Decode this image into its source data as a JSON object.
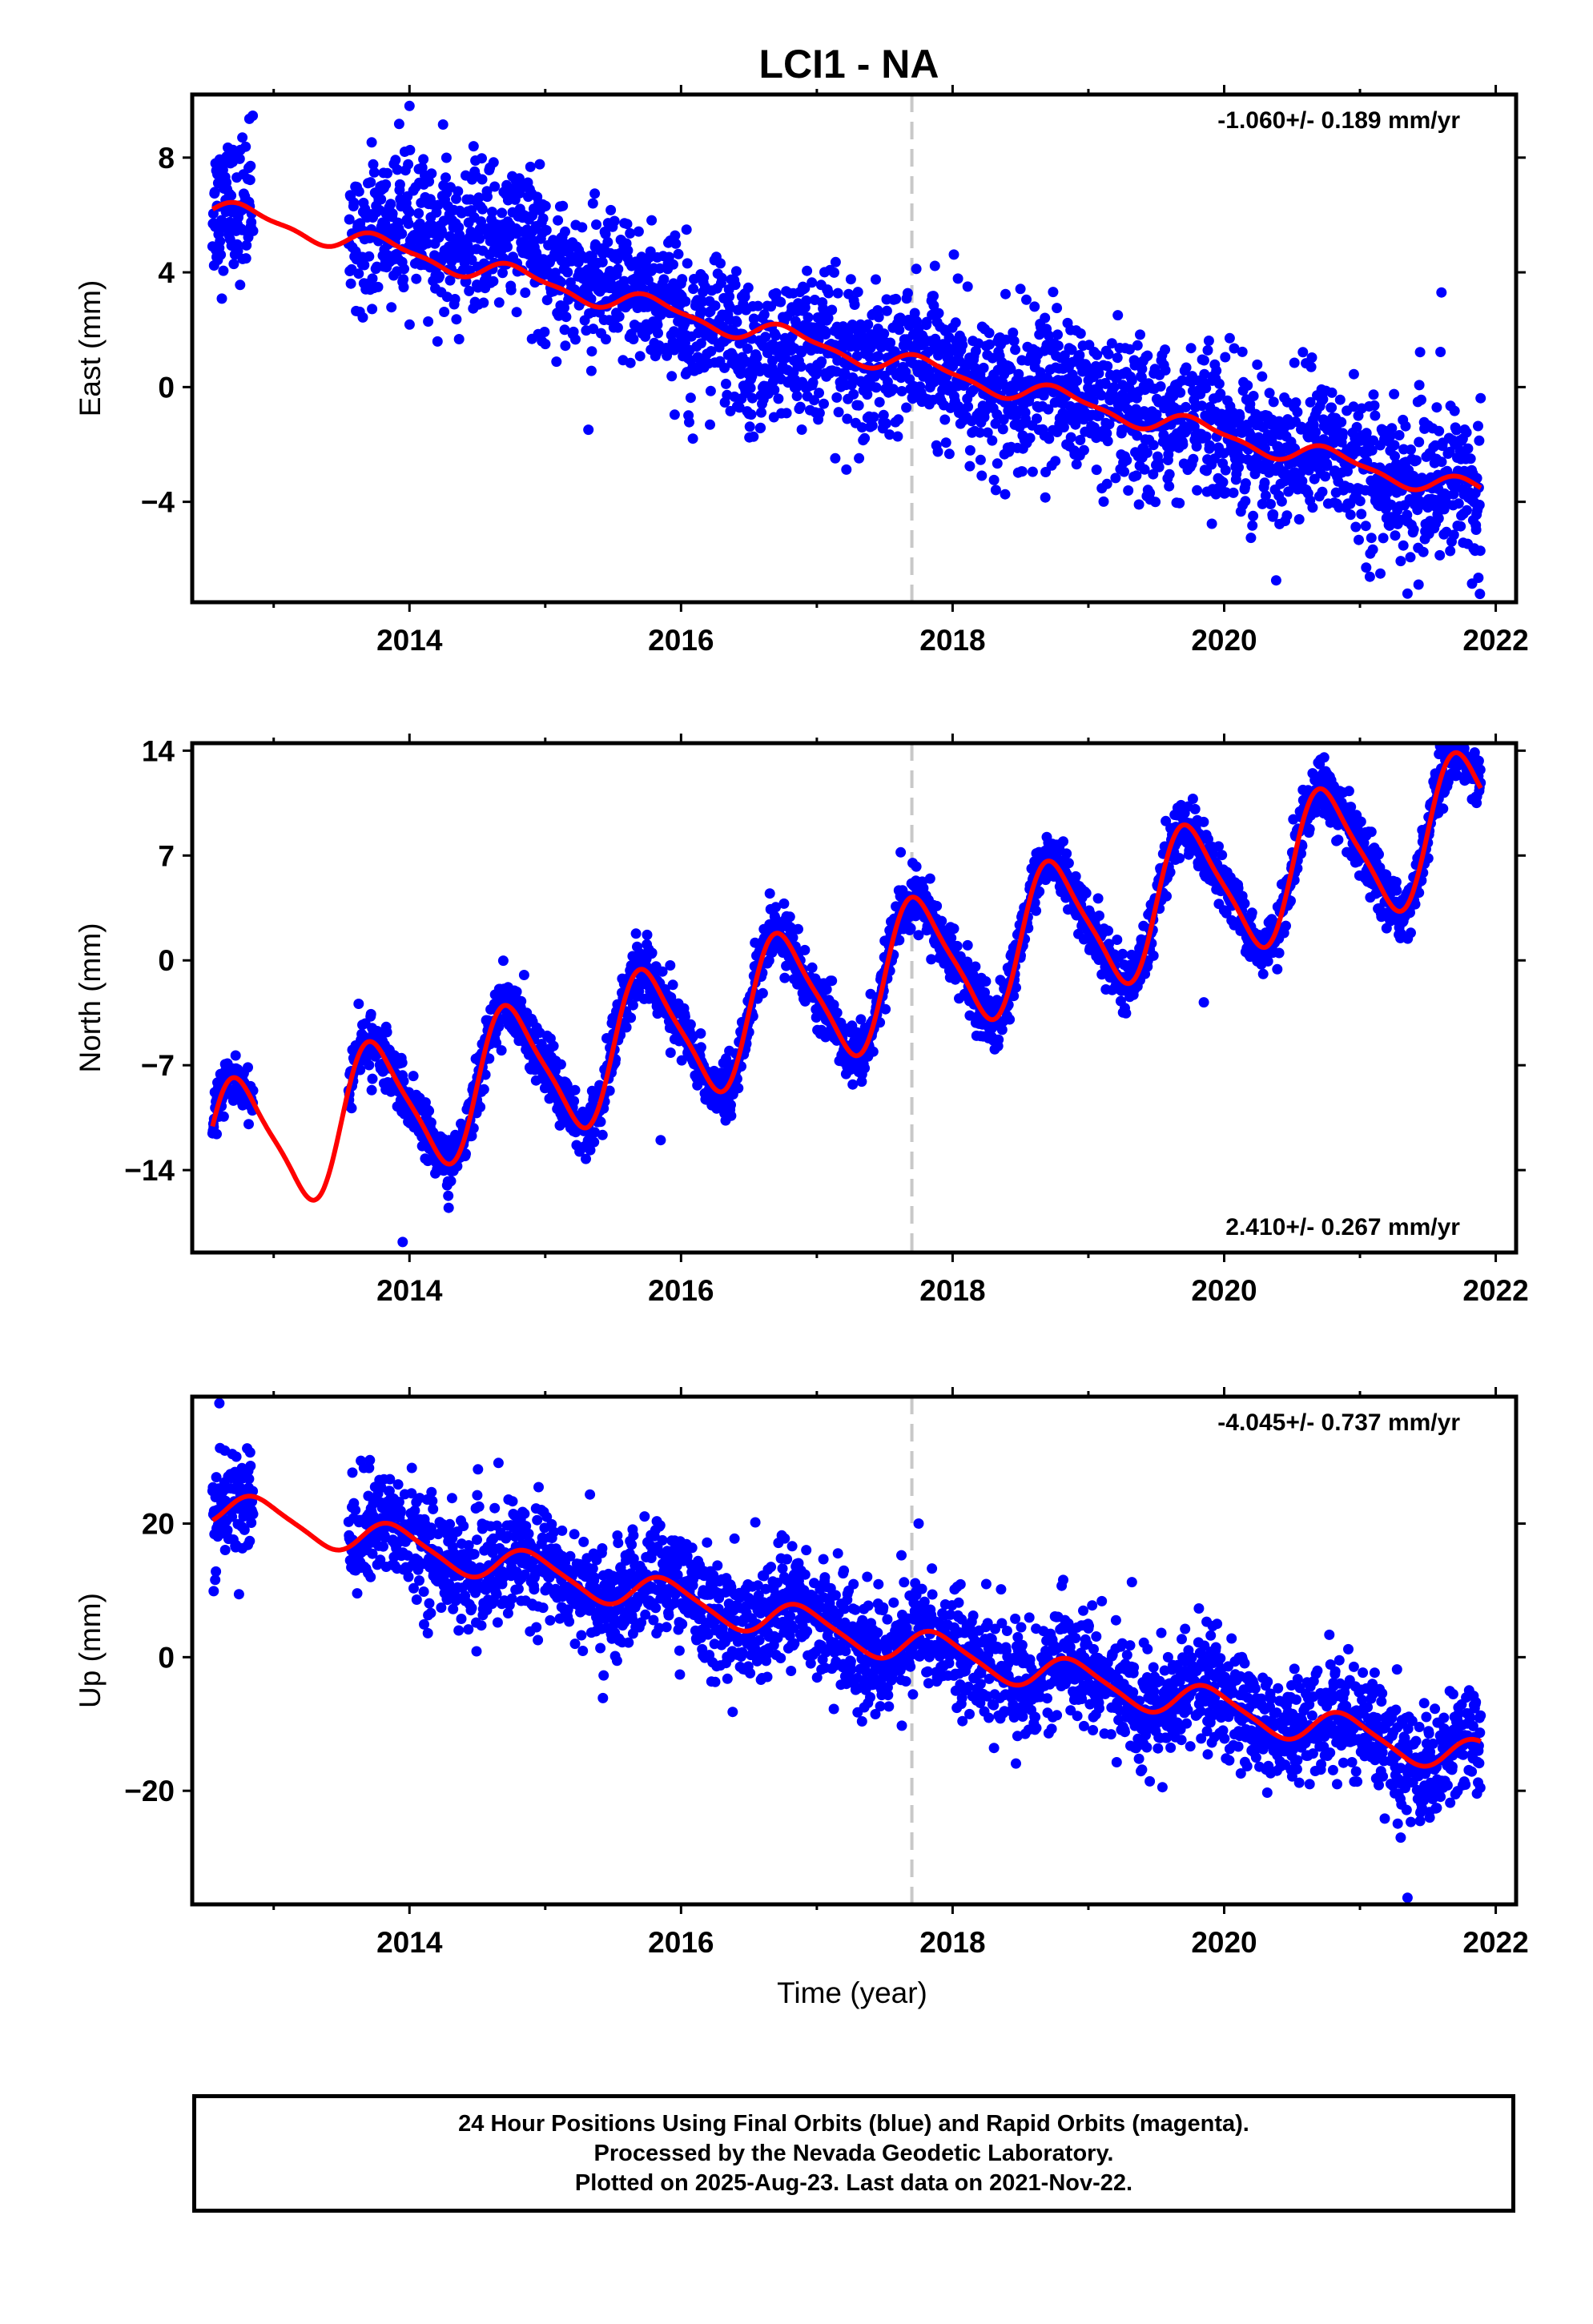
{
  "chart_data": {
    "type": "scatter",
    "title": "LCI1 - NA",
    "xlabel": "Time (year)",
    "xlim": [
      2012.4,
      2022.15
    ],
    "x_ticks": [
      2014,
      2016,
      2018,
      2020,
      2022
    ],
    "minor_x_ticks": [
      2013,
      2015,
      2017,
      2019,
      2021
    ],
    "vline_x": 2017.7,
    "data_start": 2012.55,
    "data_end": 2021.89,
    "data_gap": [
      2012.85,
      2013.55
    ],
    "colors": {
      "points": "#0000ff",
      "fit": "#ff0000",
      "vline": "#c8c8c8",
      "frame": "#000000"
    },
    "panels": [
      {
        "name": "east",
        "ylabel": "East (mm)",
        "ylim": [
          -7.5,
          10.2
        ],
        "yticks": [
          8,
          4,
          0,
          -4
        ],
        "ytick_labels": [
          "8",
          "4",
          "0",
          "−4"
        ],
        "rate_label": "-1.060+/- 0.189 mm/yr",
        "rate_position": "top-right",
        "trend": {
          "slope": -1.06,
          "ref_year": 2012.55,
          "intercept": 6.2
        },
        "seasonal": {
          "annual_amp": 0.35,
          "annual_phase": 0.55,
          "semiannual_amp": 0.12
        },
        "noise_sd": 1.25,
        "offsets": [
          {
            "from": 2013.6,
            "to": 2015.7,
            "delta": 1.2
          },
          {
            "from": 2016.3,
            "to": 2017.0,
            "delta": -1.0
          }
        ],
        "outliers": [
          {
            "x": 2021.35,
            "y": -7.2
          },
          {
            "x": 2021.15,
            "y": -6.5
          },
          {
            "x": 2021.6,
            "y": 3.3
          },
          {
            "x": 2014.0,
            "y": 9.8
          }
        ]
      },
      {
        "name": "north",
        "ylabel": "North (mm)",
        "ylim": [
          -19.5,
          14.5
        ],
        "yticks": [
          14,
          7,
          0,
          -7,
          -14
        ],
        "ytick_labels": [
          "14",
          "7",
          "0",
          "−7",
          "−14"
        ],
        "rate_label": "2.410+/- 0.267 mm/yr",
        "rate_position": "bottom-right",
        "trend": {
          "slope": 2.41,
          "ref_year": 2012.55,
          "intercept": -13.0
        },
        "seasonal": {
          "annual_amp": 4.5,
          "annual_phase": 0.5,
          "semiannual_amp": 0.9
        },
        "noise_sd": 0.95,
        "offsets": [],
        "outliers": [
          {
            "x": 2013.95,
            "y": -18.8
          },
          {
            "x": 2015.85,
            "y": -12.0
          },
          {
            "x": 2019.85,
            "y": -2.8
          }
        ]
      },
      {
        "name": "up",
        "ylabel": "Up (mm)",
        "ylim": [
          -37,
          39
        ],
        "yticks": [
          20,
          0,
          -20
        ],
        "ytick_labels": [
          "20",
          "0",
          "−20"
        ],
        "rate_label": "-4.045+/- 0.737 mm/yr",
        "rate_position": "top-right",
        "trend": {
          "slope": -4.045,
          "ref_year": 2012.55,
          "intercept": 22.5
        },
        "seasonal": {
          "annual_amp": 2.6,
          "annual_phase": 0.65,
          "semiannual_amp": 0.5
        },
        "noise_sd": 4.2,
        "offsets": [],
        "outliers": [
          {
            "x": 2012.6,
            "y": 38.0
          },
          {
            "x": 2021.35,
            "y": -36.0
          },
          {
            "x": 2021.3,
            "y": -27.0
          },
          {
            "x": 2017.75,
            "y": 20.0
          }
        ]
      }
    ]
  },
  "footer": {
    "line1": "24 Hour Positions Using Final Orbits (blue) and Rapid Orbits (magenta).",
    "line2": "Processed by the Nevada Geodetic Laboratory.",
    "line3": "Plotted on 2025-Aug-23. Last data on 2021-Nov-22."
  }
}
